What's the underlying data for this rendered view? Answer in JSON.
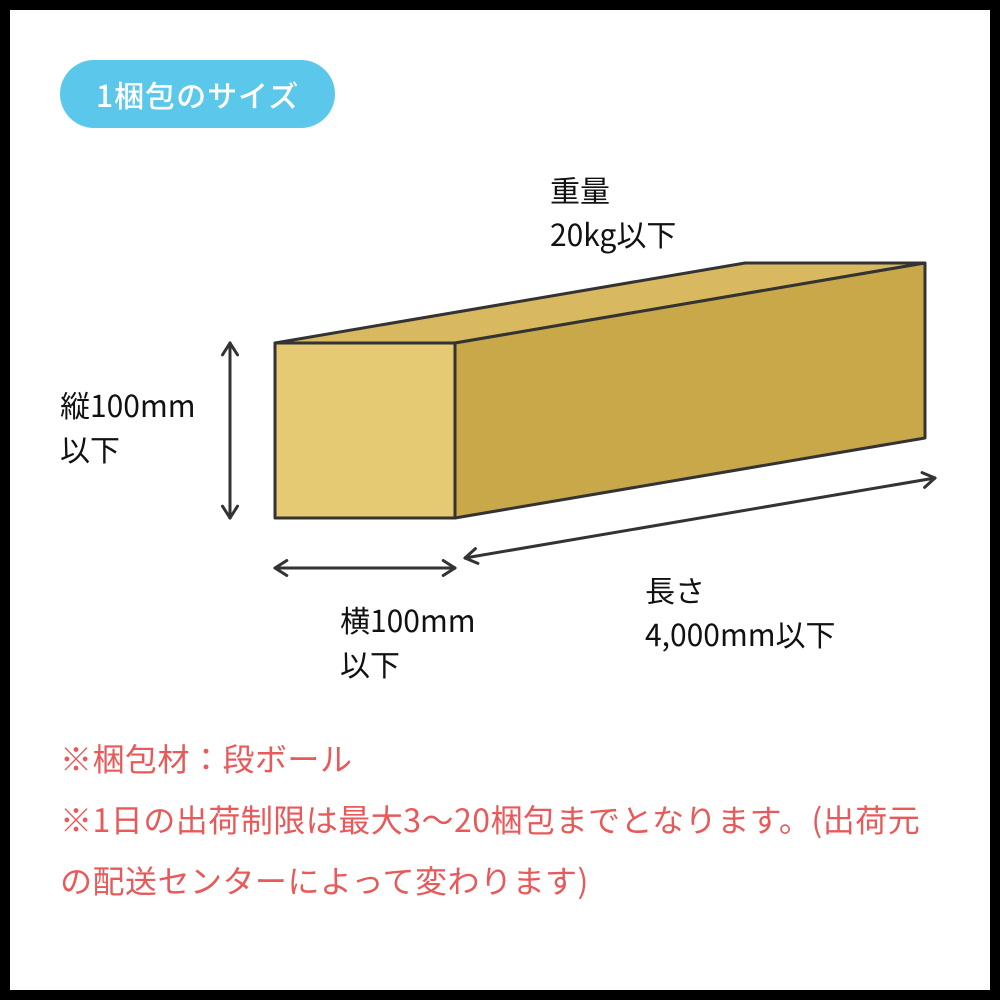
{
  "badge": {
    "text": "1梱包のサイズ",
    "bg_color": "#5bc8eb",
    "text_color": "#ffffff"
  },
  "box": {
    "front_color": "#e6c973",
    "top_color": "#d9b95f",
    "side_color": "#c9a84a",
    "stroke_color": "#333333",
    "stroke_width": 3
  },
  "arrows": {
    "color": "#333333",
    "width": 3
  },
  "labels": {
    "weight": "重量\n20kg以下",
    "height": "縦100mm\n以下",
    "width": "横100mm\n以下",
    "length": "長さ\n4,000mm以下"
  },
  "notes": {
    "line1": "※梱包材：段ボール",
    "line2": "※1日の出荷制限は最大3～20梱包までとなります。(出荷元の配送センターによって変わります)",
    "color": "#e85a5a"
  }
}
